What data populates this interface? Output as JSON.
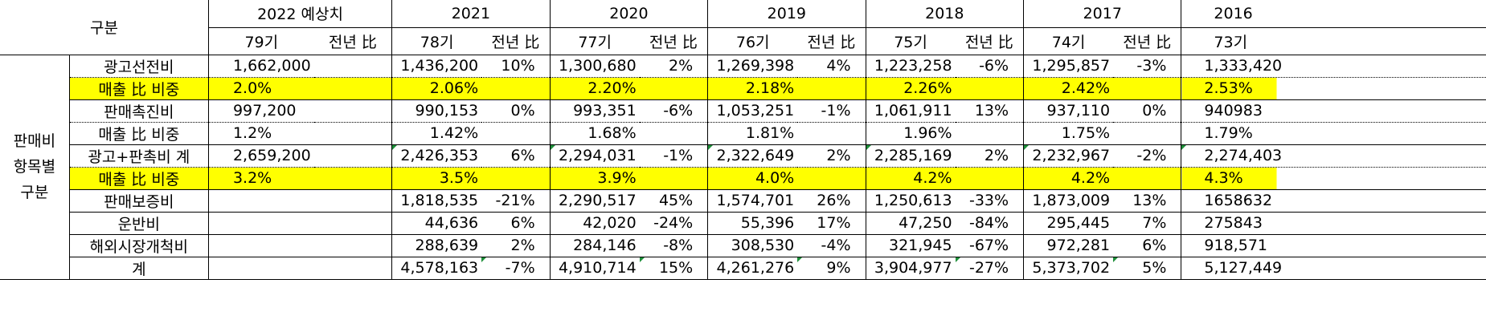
{
  "header": {
    "gubun": "구분",
    "years": [
      "2022 예상치",
      "2021",
      "2020",
      "2019",
      "2018",
      "2017",
      "2016"
    ],
    "periods": [
      "79기",
      "78기",
      "77기",
      "76기",
      "75기",
      "74기",
      "73기"
    ],
    "yoy_label": "전년 比"
  },
  "side_label": [
    "판매비",
    "항목별",
    "구분"
  ],
  "rows": [
    {
      "label": "광고선전비",
      "highlight": false,
      "values": [
        "1,662,000",
        "1,436,200",
        "1,300,680",
        "1,269,398",
        "1,223,258",
        "1,295,857",
        "1,333,420"
      ],
      "yoy": [
        "",
        "10%",
        "2%",
        "4%",
        "-6%",
        "-3%"
      ]
    },
    {
      "label": "매출 比 비중",
      "highlight": true,
      "values": [
        "2.0%",
        "2.06%",
        "2.20%",
        "2.18%",
        "2.26%",
        "2.42%",
        "2.53%"
      ],
      "yoy": [
        "",
        "",
        "",
        "",
        "",
        ""
      ]
    },
    {
      "label": "판매촉진비",
      "highlight": false,
      "values": [
        "997,200",
        "990,153",
        "993,351",
        "1,053,251",
        "1,061,911",
        "937,110",
        "940983"
      ],
      "yoy": [
        "",
        "0%",
        "-6%",
        "-1%",
        "13%",
        "0%"
      ]
    },
    {
      "label": "매출 比 비중",
      "highlight": false,
      "values": [
        "1.2%",
        "1.42%",
        "1.68%",
        "1.81%",
        "1.96%",
        "1.75%",
        "1.79%"
      ],
      "yoy": [
        "",
        "",
        "",
        "",
        "",
        ""
      ]
    },
    {
      "label": "광고+판촉비 계",
      "highlight": false,
      "values": [
        "2,659,200",
        "2,426,353",
        "2,294,031",
        "2,322,649",
        "2,285,169",
        "2,232,967",
        "2,274,403"
      ],
      "yoy": [
        "",
        "6%",
        "-1%",
        "2%",
        "2%",
        "-2%"
      ]
    },
    {
      "label": "매출 比 비중",
      "highlight": true,
      "values": [
        "3.2%",
        "3.5%",
        "3.9%",
        "4.0%",
        "4.2%",
        "4.2%",
        "4.3%"
      ],
      "yoy": [
        "",
        "",
        "",
        "",
        "",
        ""
      ]
    },
    {
      "label": "판매보증비",
      "highlight": false,
      "values": [
        "",
        "1,818,535",
        "2,290,517",
        "1,574,701",
        "1,250,613",
        "1,873,009",
        "1658632"
      ],
      "yoy": [
        "",
        "-21%",
        "45%",
        "26%",
        "-33%",
        "13%"
      ]
    },
    {
      "label": "운반비",
      "highlight": false,
      "values": [
        "",
        "44,636",
        "42,020",
        "55,396",
        "47,250",
        "295,445",
        "275843"
      ],
      "yoy": [
        "",
        "6%",
        "-24%",
        "17%",
        "-84%",
        "7%"
      ]
    },
    {
      "label": "해외시장개척비",
      "highlight": false,
      "values": [
        "",
        "288,639",
        "284,146",
        "308,530",
        "321,945",
        "972,281",
        "918,571"
      ],
      "yoy": [
        "",
        "2%",
        "-8%",
        "-4%",
        "-67%",
        "6%"
      ]
    },
    {
      "label": "계",
      "highlight": false,
      "values": [
        "",
        "4,578,163",
        "4,910,714",
        "4,261,276",
        "3,904,977",
        "5,373,702",
        "5,127,449"
      ],
      "yoy": [
        "",
        "-7%",
        "15%",
        "9%",
        "-27%",
        "5%"
      ]
    }
  ]
}
